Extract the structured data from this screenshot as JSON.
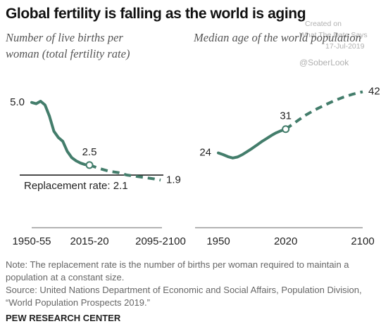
{
  "header": {
    "title": "Global fertility is falling as the world is aging"
  },
  "watermark": {
    "lines": [
      "Created on",
      "What The Data Says",
      "17-Jul-2019"
    ],
    "handle": "@SoberLook"
  },
  "chart_data": [
    {
      "type": "line",
      "title": "Number of live births per woman (total fertility rate)",
      "xlim": [
        1952.5,
        2097.5
      ],
      "ylim": [
        0,
        5.5
      ],
      "xticks": [
        {
          "value": 1952.5,
          "label": "1950-55"
        },
        {
          "value": 2017.5,
          "label": "2015-20"
        },
        {
          "value": 2097.5,
          "label": "2095-2100"
        }
      ],
      "reference_line": {
        "value": 2.1,
        "label": "Replacement rate: 2.1"
      },
      "series": [
        {
          "color": "#437d6b",
          "dashed": false,
          "x": [
            1952.5,
            1957.5,
            1962.5,
            1967.5,
            1972.5,
            1977.5,
            1982.5,
            1987.5,
            1992.5,
            1997.5,
            2002.5,
            2007.5,
            2012.5,
            2017.5
          ],
          "values": [
            5.0,
            4.95,
            5.05,
            4.9,
            4.45,
            3.85,
            3.6,
            3.45,
            3.05,
            2.8,
            2.67,
            2.58,
            2.52,
            2.5
          ],
          "value_labels": [
            "5.0",
            null,
            null,
            null,
            null,
            null,
            null,
            null,
            null,
            null,
            null,
            null,
            null,
            "2.5"
          ]
        },
        {
          "color": "#437d6b",
          "dashed": true,
          "x": [
            2017.5,
            2030,
            2040,
            2050,
            2060,
            2070,
            2080,
            2090,
            2097.5
          ],
          "values": [
            2.5,
            2.35,
            2.25,
            2.2,
            2.1,
            2.05,
            2.0,
            1.95,
            1.9
          ],
          "value_labels": [
            null,
            null,
            null,
            null,
            null,
            null,
            null,
            null,
            "1.9"
          ]
        }
      ]
    },
    {
      "type": "line",
      "title": "Median age of the world population",
      "xlim": [
        1950,
        2100
      ],
      "ylim": [
        2,
        45
      ],
      "xticks": [
        1950,
        2020,
        2100
      ],
      "series": [
        {
          "color": "#437d6b",
          "dashed": false,
          "x": [
            1950,
            1955,
            1960,
            1965,
            1970,
            1975,
            1980,
            1985,
            1990,
            1995,
            2000,
            2005,
            2010,
            2015,
            2020
          ],
          "values": [
            24,
            23.5,
            22.9,
            22.5,
            22.8,
            23.5,
            24.4,
            25.3,
            26.3,
            27.3,
            28.2,
            29.1,
            29.9,
            30.5,
            31
          ],
          "value_labels": [
            "24",
            null,
            null,
            null,
            null,
            null,
            null,
            null,
            null,
            null,
            null,
            null,
            null,
            null,
            "31"
          ]
        },
        {
          "color": "#437d6b",
          "dashed": true,
          "x": [
            2020,
            2030,
            2040,
            2050,
            2060,
            2070,
            2080,
            2090,
            2100
          ],
          "values": [
            31,
            33,
            35,
            36.6,
            38,
            39.3,
            40.4,
            41.3,
            42
          ],
          "value_labels": [
            null,
            null,
            null,
            null,
            null,
            null,
            null,
            null,
            "42"
          ]
        }
      ]
    }
  ],
  "footer": {
    "note": "Note: The replacement rate is the number of births per woman required to maintain a population at a constant size.",
    "source": "Source: United Nations Department of Economic and Social Affairs, Population Division, “World Population Prospects 2019.”",
    "brand": "PEW RESEARCH CENTER"
  }
}
